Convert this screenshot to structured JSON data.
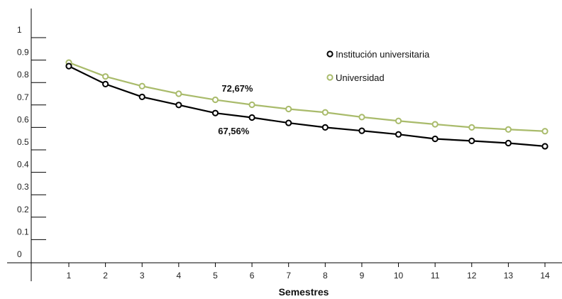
{
  "chart_data": {
    "type": "line",
    "xlabel": "Semestres",
    "ylabel": "",
    "x": [
      1,
      2,
      3,
      4,
      5,
      6,
      7,
      8,
      9,
      10,
      11,
      12,
      13,
      14
    ],
    "ylim": [
      0,
      1
    ],
    "yticks": [
      "0",
      "0.1",
      "0.2",
      "0.3",
      "0.4",
      "0.5",
      "0.6",
      "0.7",
      "0.8",
      "0.9",
      "1"
    ],
    "xticks": [
      "1",
      "2",
      "3",
      "4",
      "5",
      "6",
      "7",
      "8",
      "9",
      "10",
      "11",
      "12",
      "13",
      "14"
    ],
    "grid": false,
    "legend_position": "top-right",
    "series": [
      {
        "name": "Institución universitaria",
        "color": "#000000",
        "values": [
          0.873,
          0.793,
          0.736,
          0.7,
          0.664,
          0.644,
          0.62,
          0.6,
          0.585,
          0.569,
          0.549,
          0.54,
          0.53,
          0.516
        ]
      },
      {
        "name": "Universidad",
        "color": "#a9bb6b",
        "values": [
          0.889,
          0.827,
          0.784,
          0.75,
          0.723,
          0.701,
          0.682,
          0.667,
          0.646,
          0.629,
          0.614,
          0.6,
          0.591,
          0.583
        ]
      }
    ],
    "annotations": [
      {
        "text": "72,67%",
        "x": 5.6,
        "y": 0.76
      },
      {
        "text": "67,56%",
        "x": 5.5,
        "y": 0.57
      }
    ]
  }
}
